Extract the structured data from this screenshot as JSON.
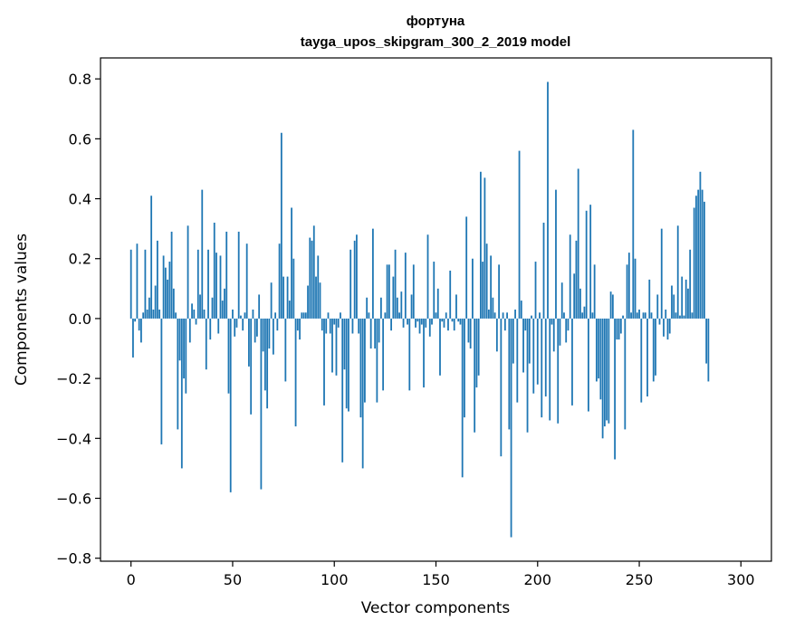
{
  "chart_data": {
    "type": "bar",
    "title": "фортуна",
    "subtitle": "tayga_upos_skipgram_300_2_2019 model",
    "xlabel": "Vector components",
    "ylabel": "Components values",
    "xlim": [
      -15,
      315
    ],
    "ylim": [
      -0.81,
      0.87
    ],
    "xticks": [
      0,
      50,
      100,
      150,
      200,
      250,
      300
    ],
    "xtick_labels": [
      "0",
      "50",
      "100",
      "150",
      "200",
      "250",
      "300"
    ],
    "yticks": [
      0.8,
      0.6,
      0.4,
      0.2,
      0.0,
      -0.2,
      -0.4,
      -0.6,
      -0.8
    ],
    "ytick_labels": [
      "0.8",
      "0.6",
      "0.4",
      "0.2",
      "0.0",
      "−0.2",
      "−0.4",
      "−0.6",
      "−0.8"
    ],
    "bar_color": "#1f77b4",
    "series": [
      {
        "name": "фортуна",
        "x_start": 0,
        "values": [
          0.23,
          -0.13,
          -0.01,
          0.25,
          -0.04,
          -0.08,
          0.02,
          0.23,
          0.03,
          0.07,
          0.41,
          0.03,
          0.11,
          0.26,
          0.03,
          -0.42,
          0.21,
          0.17,
          0.13,
          0.19,
          0.29,
          0.1,
          0.02,
          -0.37,
          -0.14,
          -0.5,
          -0.2,
          -0.25,
          0.31,
          -0.08,
          0.05,
          0.03,
          -0.02,
          0.23,
          0.08,
          0.43,
          0.03,
          -0.17,
          0.23,
          -0.07,
          0.07,
          0.32,
          0.22,
          -0.05,
          0.21,
          0.06,
          0.1,
          0.29,
          -0.25,
          -0.58,
          0.03,
          -0.06,
          -0.03,
          0.29,
          0.01,
          -0.04,
          0.02,
          0.25,
          -0.16,
          -0.32,
          0.03,
          -0.08,
          -0.06,
          0.08,
          -0.57,
          -0.11,
          -0.24,
          -0.3,
          -0.1,
          0.12,
          -0.12,
          0.02,
          -0.04,
          0.25,
          0.62,
          0.14,
          -0.21,
          0.14,
          0.06,
          0.37,
          0.2,
          -0.36,
          -0.04,
          -0.07,
          0.02,
          0.02,
          0.02,
          0.11,
          0.27,
          0.26,
          0.31,
          0.14,
          0.21,
          0.12,
          -0.04,
          -0.29,
          -0.05,
          0.02,
          -0.05,
          -0.18,
          -0.02,
          -0.19,
          -0.03,
          0.02,
          -0.48,
          -0.17,
          -0.3,
          -0.31,
          0.23,
          -0.05,
          0.26,
          0.28,
          -0.05,
          -0.33,
          -0.5,
          -0.28,
          0.07,
          0.02,
          -0.1,
          0.3,
          -0.1,
          -0.28,
          -0.08,
          0.07,
          -0.24,
          0.02,
          0.18,
          0.18,
          -0.04,
          0.14,
          0.23,
          0.07,
          0.02,
          0.09,
          -0.03,
          0.22,
          -0.02,
          -0.24,
          0.08,
          0.18,
          -0.03,
          -0.01,
          -0.05,
          -0.02,
          -0.23,
          -0.03,
          0.28,
          -0.06,
          -0.02,
          0.19,
          0.02,
          0.1,
          -0.19,
          -0.01,
          -0.03,
          0.02,
          -0.04,
          0.16,
          -0.01,
          -0.04,
          0.08,
          -0.01,
          -0.02,
          -0.53,
          -0.33,
          0.34,
          -0.08,
          -0.1,
          0.2,
          -0.38,
          -0.23,
          -0.19,
          0.49,
          0.19,
          0.47,
          0.25,
          0.03,
          0.21,
          0.07,
          0.02,
          -0.11,
          0.18,
          -0.46,
          0.02,
          -0.04,
          0.02,
          -0.37,
          -0.73,
          -0.15,
          0.03,
          -0.28,
          0.56,
          0.06,
          -0.18,
          -0.04,
          -0.38,
          -0.15,
          0.01,
          -0.25,
          0.19,
          -0.22,
          0.02,
          -0.33,
          0.32,
          -0.26,
          0.79,
          -0.34,
          -0.02,
          -0.11,
          0.43,
          -0.35,
          -0.09,
          0.12,
          0.02,
          -0.08,
          -0.04,
          0.28,
          -0.29,
          0.15,
          0.26,
          0.5,
          0.1,
          0.02,
          0.04,
          0.36,
          -0.31,
          0.38,
          0.02,
          0.18,
          -0.21,
          -0.2,
          -0.27,
          -0.4,
          -0.36,
          -0.34,
          -0.35,
          0.09,
          0.08,
          -0.47,
          -0.07,
          -0.07,
          -0.05,
          0.01,
          -0.37,
          0.18,
          0.22,
          0.02,
          0.63,
          0.2,
          0.02,
          0.03,
          -0.28,
          0.02,
          0.02,
          -0.26,
          0.13,
          0.02,
          -0.21,
          -0.19,
          0.08,
          -0.02,
          0.3,
          -0.06,
          0.03,
          -0.07,
          -0.05,
          0.11,
          0.08,
          0.02,
          0.31,
          0.01,
          0.14,
          0.01,
          0.13,
          0.1,
          0.23,
          0.02,
          0.37,
          0.41,
          0.43,
          0.49,
          0.43,
          0.39,
          -0.15,
          -0.21
        ]
      }
    ]
  }
}
